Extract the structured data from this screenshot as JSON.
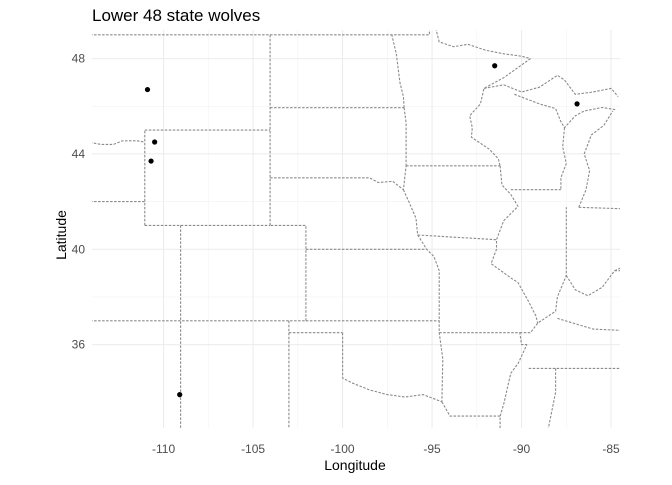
{
  "chart_data": {
    "type": "scatter",
    "title": "Lower 48 state wolves",
    "xlabel": "Longitude",
    "ylabel": "Latitude",
    "xlim": [
      -114,
      -84.5
    ],
    "ylim": [
      32.5,
      49.2
    ],
    "x_ticks": [
      -110,
      -105,
      -100,
      -95,
      -90,
      -85
    ],
    "y_ticks": [
      36,
      40,
      44,
      48
    ],
    "x_tick_labels": [
      "-110",
      "-105",
      "-100",
      "-95",
      "-90",
      "-85"
    ],
    "y_tick_labels": [
      "36",
      "40",
      "44",
      "48"
    ],
    "grid": true,
    "background": "map of US state borders (dashed gray)",
    "point_color": "#000000",
    "border_color": "#8a8a8a",
    "points": [
      {
        "x": -110.9,
        "y": 46.7
      },
      {
        "x": -110.5,
        "y": 44.5
      },
      {
        "x": -110.7,
        "y": 43.7
      },
      {
        "x": -109.1,
        "y": 33.9
      },
      {
        "x": -91.5,
        "y": 47.7
      },
      {
        "x": -86.9,
        "y": 46.1
      }
    ]
  }
}
